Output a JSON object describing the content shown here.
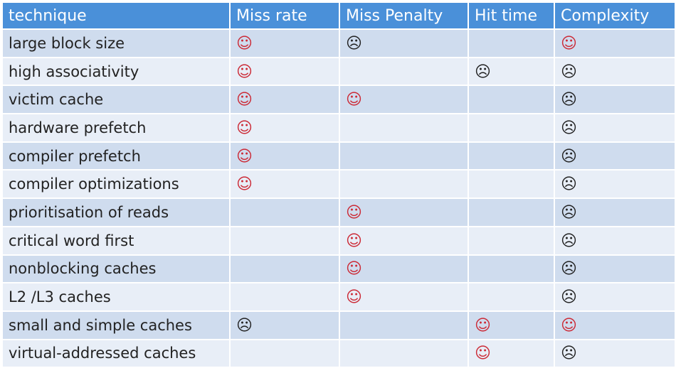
{
  "headers": [
    "technique",
    "Miss rate",
    "Miss Penalty",
    "Hit time",
    "Complexity"
  ],
  "symbols": {
    "smile": "☺",
    "frown": "☹",
    "smile_red": "☺"
  },
  "rows": [
    {
      "technique": "large block size",
      "cells": [
        "smile_red",
        "frown",
        "",
        "smile"
      ]
    },
    {
      "technique": "high associativity",
      "cells": [
        "smile_red",
        "",
        "frown",
        "frown"
      ]
    },
    {
      "technique": "victim cache",
      "cells": [
        "smile_red",
        "smile",
        "",
        "frown"
      ]
    },
    {
      "technique": "hardware prefetch",
      "cells": [
        "smile_red",
        "",
        "",
        "frown"
      ]
    },
    {
      "technique": "compiler prefetch",
      "cells": [
        "smile_red",
        "",
        "",
        "frown"
      ]
    },
    {
      "technique": "compiler optimizations",
      "cells": [
        "smile_red",
        "",
        "",
        "frown"
      ]
    },
    {
      "technique": "prioritisation of reads",
      "cells": [
        "",
        "smile_red",
        "",
        "frown"
      ]
    },
    {
      "technique": "critical word first",
      "cells": [
        "",
        "smile_red",
        "",
        "frown"
      ]
    },
    {
      "technique": "nonblocking caches",
      "cells": [
        "",
        "smile_red",
        "",
        "frown"
      ]
    },
    {
      "technique": "L2 /L3 caches",
      "cells": [
        "",
        "smile_red",
        "",
        "frown"
      ]
    },
    {
      "technique": "small and simple caches",
      "cells": [
        "frown",
        "",
        "smile_red",
        "smile"
      ]
    },
    {
      "technique": "virtual-addressed caches",
      "cells": [
        "",
        "",
        "smile_red",
        "frown"
      ]
    }
  ]
}
